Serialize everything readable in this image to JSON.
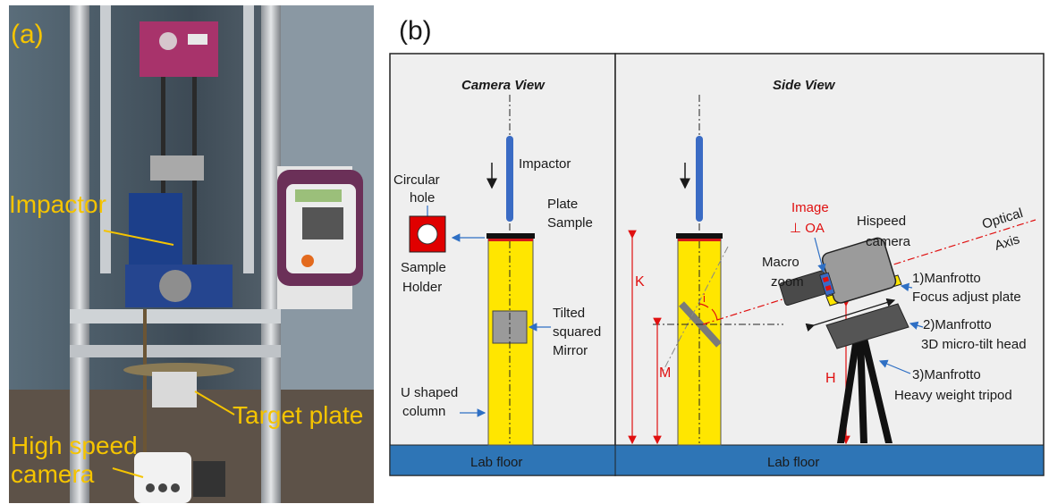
{
  "panel_a": {
    "label": "(a)",
    "annotations": {
      "impactor": "Impactor",
      "target_plate": "Target plate",
      "camera_line1": "High speed",
      "camera_line2": "camera"
    },
    "colors": {
      "annotation": "#f5c400"
    }
  },
  "panel_b": {
    "label": "(b)",
    "camera_view": {
      "title": "Camera View",
      "impactor": "Impactor",
      "plate_line1": "Plate",
      "plate_line2": "Sample",
      "hole_line1": "Circular",
      "hole_line2": "hole",
      "holder_line1": "Sample",
      "holder_line2": "Holder",
      "mirror_line1": "Tilted",
      "mirror_line2": "squared",
      "mirror_line3": "Mirror",
      "column_line1": "U shaped",
      "column_line2": "column",
      "floor": "Lab floor"
    },
    "side_view": {
      "title": "Side View",
      "K": "K",
      "M": "M",
      "H": "H",
      "angle": "i",
      "image_line1": "Image",
      "image_line2": "⊥ OA",
      "camera_line1": "Hispeed",
      "camera_line2": "camera",
      "optical_line1": "Optical",
      "optical_line2": "Axis",
      "macro_line1": "Macro",
      "macro_line2": "zoom",
      "plate_line1": "1)Manfrotto",
      "plate_line2": "Focus adjust plate",
      "head_line1": "2)Manfrotto",
      "head_line2": "3D micro-tilt head",
      "tripod_line1": "3)Manfrotto",
      "tripod_line2": "Heavy weight tripod",
      "floor": "Lab floor"
    },
    "colors": {
      "background": "#efefef",
      "floor": "#2e75b6",
      "column": "#ffe600",
      "dimension": "#e01010",
      "impactor": "#3a6bc4"
    }
  }
}
